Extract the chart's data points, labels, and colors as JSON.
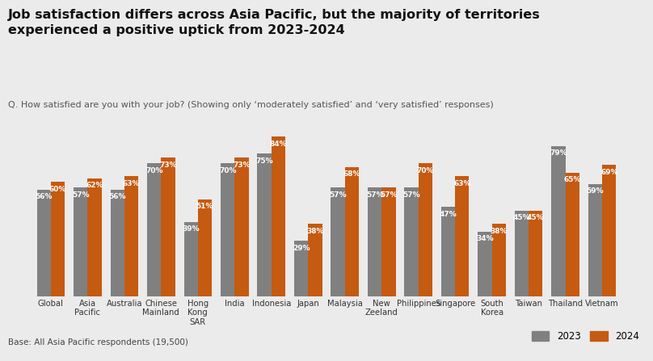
{
  "title": "Job satisfaction differs across Asia Pacific, but the majority of territories\nexperienced a positive uptick from 2023-2024",
  "subtitle": "Q. How satisfied are you with your job? (Showing only ‘moderately satisfied’ and ‘very satisfied’ responses)",
  "footnote": "Base: All Asia Pacific respondents (19,500)",
  "categories": [
    "Global",
    "Asia\nPacific",
    "Australia",
    "Chinese\nMainland",
    "Hong\nKong\nSAR",
    "India",
    "Indonesia",
    "Japan",
    "Malaysia",
    "New\nZeeland",
    "Philippines",
    "Singapore",
    "South\nKorea",
    "Taiwan",
    "Thailand",
    "Vietnam"
  ],
  "values_2023": [
    56,
    57,
    56,
    70,
    39,
    70,
    75,
    29,
    57,
    57,
    57,
    47,
    34,
    45,
    79,
    59
  ],
  "values_2024": [
    60,
    62,
    63,
    73,
    51,
    73,
    84,
    38,
    68,
    57,
    70,
    63,
    38,
    45,
    65,
    69
  ],
  "color_2023": "#808080",
  "color_2024": "#C55A11",
  "background_color": "#EBEBEB",
  "bar_width": 0.38,
  "legend_labels": [
    "2023",
    "2024"
  ],
  "ylim": [
    0,
    95
  ],
  "label_color": "#FFFFFF",
  "label_fontsize": 6.5
}
